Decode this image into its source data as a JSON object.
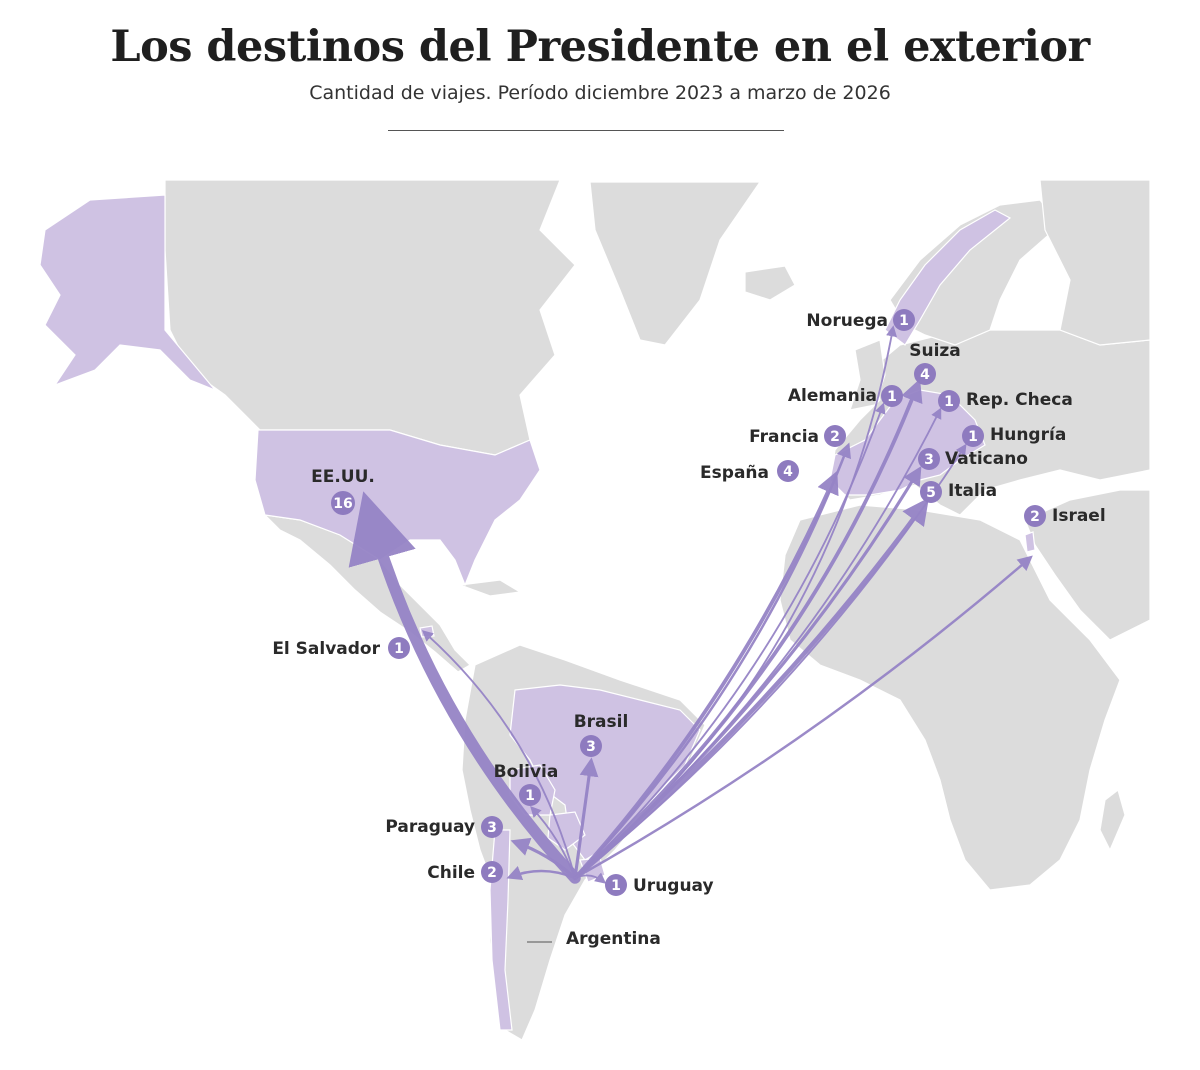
{
  "title": "Los destinos del Presidente en el exterior",
  "subtitle": "Cantidad de viajes. Período diciembre 2023 a marzo de 2026",
  "colors": {
    "land": "#dcdcdc",
    "highlight": "#cfc2e3",
    "arrow": "#9684c6",
    "badge": "#8e7bbf",
    "text": "#2a2a2a"
  },
  "origin": "Argentina",
  "destinations": [
    {
      "id": "eeuu",
      "name": "EE.UU.",
      "trips": 16
    },
    {
      "id": "el-salvador",
      "name": "El Salvador",
      "trips": 1
    },
    {
      "id": "brasil",
      "name": "Brasil",
      "trips": 3
    },
    {
      "id": "bolivia",
      "name": "Bolivia",
      "trips": 1
    },
    {
      "id": "paraguay",
      "name": "Paraguay",
      "trips": 3
    },
    {
      "id": "chile",
      "name": "Chile",
      "trips": 2
    },
    {
      "id": "uruguay",
      "name": "Uruguay",
      "trips": 1
    },
    {
      "id": "noruega",
      "name": "Noruega",
      "trips": 1
    },
    {
      "id": "suiza",
      "name": "Suiza",
      "trips": 4
    },
    {
      "id": "alemania",
      "name": "Alemania",
      "trips": 1
    },
    {
      "id": "rep-checa",
      "name": "Rep. Checa",
      "trips": 1
    },
    {
      "id": "francia",
      "name": "Francia",
      "trips": 2
    },
    {
      "id": "hungria",
      "name": "Hungría",
      "trips": 1
    },
    {
      "id": "vaticano",
      "name": "Vaticano",
      "trips": 3
    },
    {
      "id": "espana",
      "name": "España",
      "trips": 4
    },
    {
      "id": "italia",
      "name": "Italia",
      "trips": 5
    },
    {
      "id": "israel",
      "name": "Israel",
      "trips": 2
    }
  ]
}
